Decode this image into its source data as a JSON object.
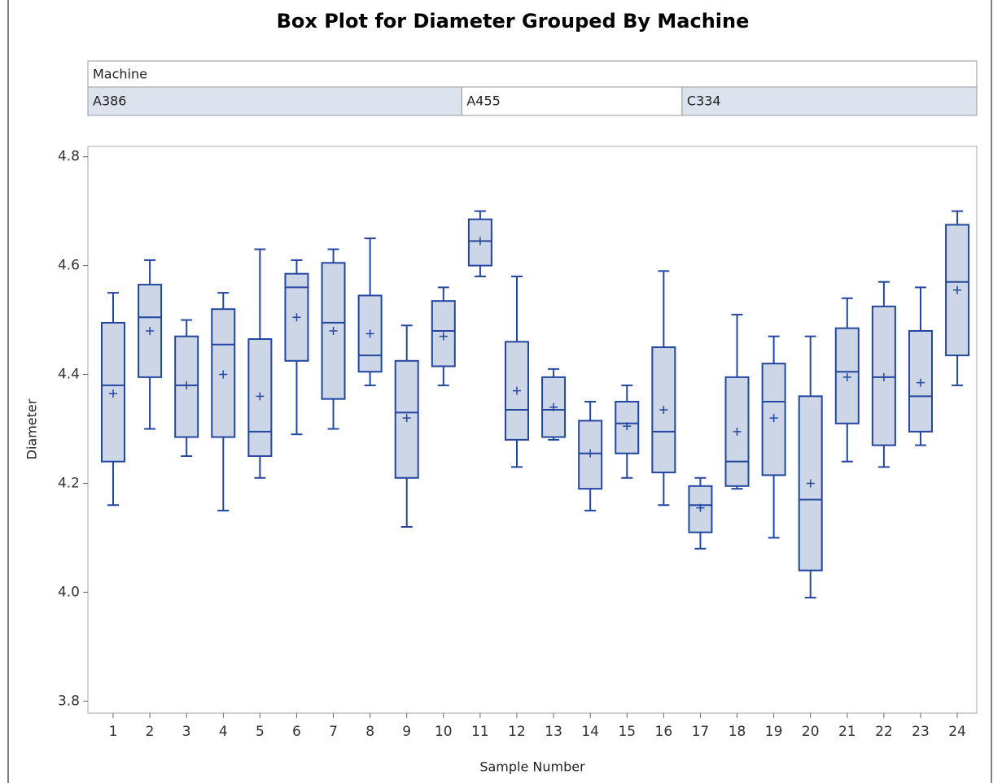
{
  "chart_data": {
    "type": "box",
    "title": "Box Plot for Diameter Grouped By Machine",
    "x_label": "Sample Number",
    "y_label": "Diameter",
    "group_label": "Machine",
    "machine": [
      "A386",
      "A386",
      "A386",
      "A386",
      "A386",
      "A386",
      "A386",
      "A386",
      "A386",
      "A386",
      "A455",
      "A455",
      "A455",
      "A455",
      "A455",
      "A455",
      "C334",
      "C334",
      "C334",
      "C334",
      "C334",
      "C334",
      "C334",
      "C334"
    ],
    "categories": [
      1,
      2,
      3,
      4,
      5,
      6,
      7,
      8,
      9,
      10,
      11,
      12,
      13,
      14,
      15,
      16,
      17,
      18,
      19,
      20,
      21,
      22,
      23,
      24
    ],
    "min": [
      4.16,
      4.3,
      4.25,
      4.15,
      4.21,
      4.29,
      4.3,
      4.38,
      4.12,
      4.38,
      4.58,
      4.23,
      4.28,
      4.15,
      4.21,
      4.16,
      4.08,
      4.19,
      4.1,
      3.99,
      4.24,
      4.23,
      4.27,
      4.38
    ],
    "q1": [
      4.24,
      4.395,
      4.285,
      4.285,
      4.25,
      4.425,
      4.355,
      4.405,
      4.21,
      4.415,
      4.6,
      4.28,
      4.285,
      4.19,
      4.255,
      4.22,
      4.11,
      4.195,
      4.215,
      4.04,
      4.31,
      4.27,
      4.295,
      4.435
    ],
    "median": [
      4.38,
      4.505,
      4.38,
      4.455,
      4.295,
      4.56,
      4.495,
      4.435,
      4.33,
      4.48,
      4.645,
      4.335,
      4.335,
      4.255,
      4.31,
      4.295,
      4.16,
      4.24,
      4.35,
      4.17,
      4.405,
      4.395,
      4.36,
      4.57
    ],
    "q3": [
      4.495,
      4.565,
      4.47,
      4.52,
      4.465,
      4.585,
      4.605,
      4.545,
      4.425,
      4.535,
      4.685,
      4.46,
      4.395,
      4.315,
      4.35,
      4.45,
      4.195,
      4.395,
      4.42,
      4.36,
      4.485,
      4.525,
      4.48,
      4.675
    ],
    "max": [
      4.55,
      4.61,
      4.5,
      4.55,
      4.63,
      4.61,
      4.63,
      4.65,
      4.49,
      4.56,
      4.7,
      4.58,
      4.41,
      4.35,
      4.38,
      4.59,
      4.21,
      4.51,
      4.47,
      4.47,
      4.54,
      4.57,
      4.56,
      4.7
    ],
    "mean": [
      4.365,
      4.48,
      4.38,
      4.4,
      4.36,
      4.505,
      4.48,
      4.475,
      4.32,
      4.47,
      4.645,
      4.37,
      4.34,
      4.255,
      4.305,
      4.335,
      4.155,
      4.295,
      4.32,
      4.2,
      4.395,
      4.395,
      4.385,
      4.555
    ],
    "color": "#2346a0",
    "fill": "#cdd6e6",
    "ylim": [
      3.778,
      4.819
    ],
    "yticks": [
      {
        "value": 3.8,
        "label": "3.8"
      },
      {
        "value": 4.0,
        "label": "4.0"
      },
      4.2,
      4.4,
      4.6,
      {
        "value": 4.8,
        "label": "4.8"
      }
    ]
  }
}
